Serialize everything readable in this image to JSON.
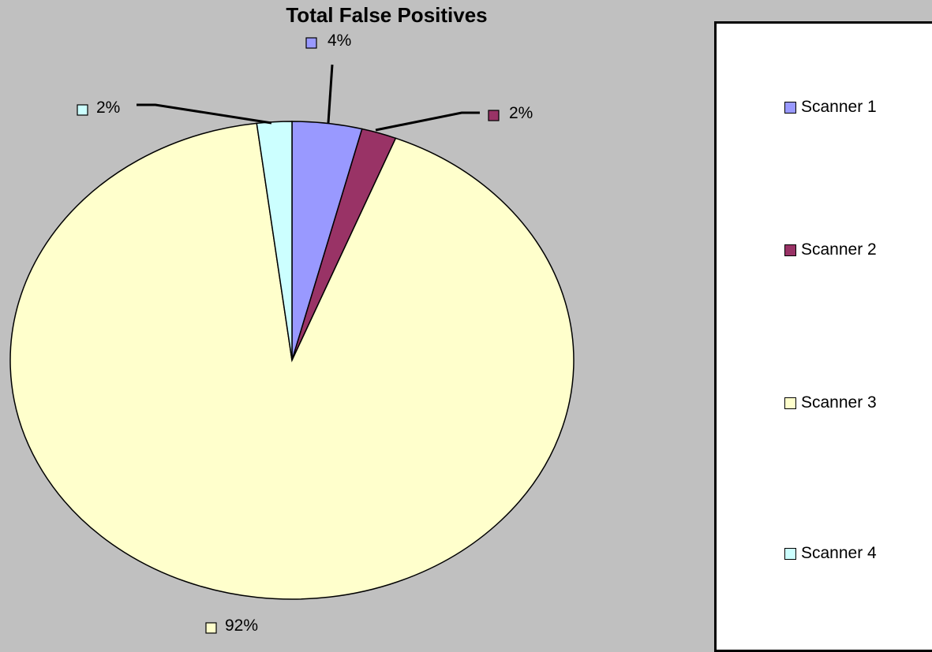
{
  "chart_data": {
    "type": "pie",
    "title": "Total False Positives",
    "categories": [
      "Scanner 1",
      "Scanner 2",
      "Scanner 3",
      "Scanner 4"
    ],
    "values": [
      4,
      2,
      92,
      2
    ],
    "data_labels": [
      "4%",
      "2%",
      "92%",
      "2%"
    ],
    "colors": [
      "#9999ff",
      "#993366",
      "#ffffcc",
      "#ccffff"
    ],
    "legend_position": "right"
  }
}
